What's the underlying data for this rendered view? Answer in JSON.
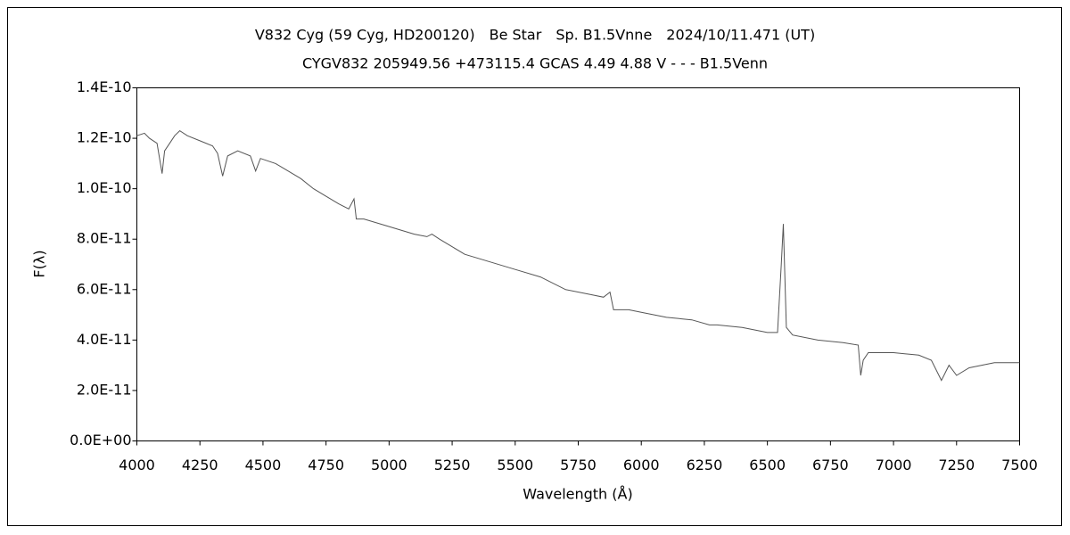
{
  "chart_data": {
    "type": "line",
    "title": "V832 Cyg (59 Cyg, HD200120)　Be Star　Sp. B1.5Vnne　2024/10/11.471 (UT)",
    "subtitle": "CYGV832 205949.56 +473115.4 GCAS 4.49 4.88 V - - - B1.5Venn",
    "xlabel": "Wavelength (Å)",
    "ylabel": "F(λ)",
    "x": [
      4000,
      4030,
      4050,
      4080,
      4100,
      4110,
      4130,
      4150,
      4170,
      4200,
      4250,
      4300,
      4320,
      4340,
      4360,
      4400,
      4450,
      4471,
      4490,
      4550,
      4600,
      4650,
      4700,
      4750,
      4800,
      4840,
      4861,
      4870,
      4900,
      5000,
      5100,
      5150,
      5170,
      5200,
      5250,
      5300,
      5400,
      5500,
      5600,
      5700,
      5800,
      5850,
      5876,
      5890,
      5950,
      6000,
      6100,
      6200,
      6270,
      6300,
      6400,
      6500,
      6540,
      6555,
      6563,
      6575,
      6600,
      6700,
      6800,
      6860,
      6870,
      6880,
      6900,
      7000,
      7100,
      7150,
      7190,
      7220,
      7250,
      7300,
      7400,
      7500
    ],
    "series": [
      {
        "name": "F(λ)",
        "color": "#555555",
        "values": [
          1.21e-10,
          1.22e-10,
          1.2e-10,
          1.18e-10,
          1.06e-10,
          1.15e-10,
          1.18e-10,
          1.21e-10,
          1.23e-10,
          1.21e-10,
          1.19e-10,
          1.17e-10,
          1.14e-10,
          1.05e-10,
          1.13e-10,
          1.15e-10,
          1.13e-10,
          1.07e-10,
          1.12e-10,
          1.1e-10,
          1.07e-10,
          1.04e-10,
          1e-10,
          9.7e-11,
          9.4e-11,
          9.2e-11,
          9.6e-11,
          8.8e-11,
          8.8e-11,
          8.5e-11,
          8.2e-11,
          8.1e-11,
          8.2e-11,
          8e-11,
          7.7e-11,
          7.4e-11,
          7.1e-11,
          6.8e-11,
          6.5e-11,
          6e-11,
          5.8e-11,
          5.7e-11,
          5.9e-11,
          5.2e-11,
          5.2e-11,
          5.1e-11,
          4.9e-11,
          4.8e-11,
          4.6e-11,
          4.6e-11,
          4.5e-11,
          4.3e-11,
          4.3e-11,
          7e-11,
          8.6e-11,
          4.5e-11,
          4.2e-11,
          4e-11,
          3.9e-11,
          3.8e-11,
          2.6e-11,
          3.2e-11,
          3.5e-11,
          3.5e-11,
          3.4e-11,
          3.2e-11,
          2.4e-11,
          3e-11,
          2.6e-11,
          2.9e-11,
          3.1e-11,
          3.1e-11
        ]
      }
    ],
    "xlim": [
      4000,
      7500
    ],
    "xticks": [
      4000,
      4250,
      4500,
      4750,
      5000,
      5250,
      5500,
      5750,
      6000,
      6250,
      6500,
      6750,
      7000,
      7250,
      7500
    ],
    "ylim": [
      0,
      1.4e-10
    ],
    "yticks": [
      {
        "value": 0,
        "label": "0.0E+00"
      },
      {
        "value": 2e-11,
        "label": "2.0E-11"
      },
      {
        "value": 4e-11,
        "label": "4.0E-11"
      },
      {
        "value": 6e-11,
        "label": "6.0E-11"
      },
      {
        "value": 8e-11,
        "label": "8.0E-11"
      },
      {
        "value": 1e-10,
        "label": "1.0E-10"
      },
      {
        "value": 1.2e-10,
        "label": "1.2E-10"
      },
      {
        "value": 1.4e-10,
        "label": "1.4E-10"
      }
    ],
    "grid": false
  }
}
